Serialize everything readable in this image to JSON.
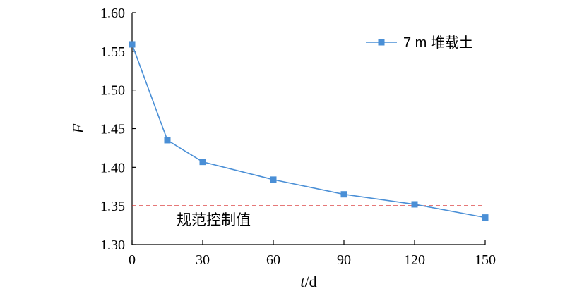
{
  "chart_data": {
    "type": "line",
    "x": [
      0,
      15,
      30,
      60,
      90,
      120,
      150
    ],
    "series": [
      {
        "name": "7 m 堆载土",
        "values": [
          1.559,
          1.435,
          1.407,
          1.384,
          1.365,
          1.352,
          1.335
        ],
        "color": "#4a8fd6",
        "marker": "square"
      }
    ],
    "xlabel_italic": "t",
    "xlabel_unit": "/d",
    "ylabel": "F",
    "xlim": [
      0,
      150
    ],
    "ylim": [
      1.3,
      1.6
    ],
    "xticks": [
      0,
      30,
      60,
      90,
      120,
      150
    ],
    "yticks": [
      1.3,
      1.35,
      1.4,
      1.45,
      1.5,
      1.55,
      1.6
    ],
    "ytick_labels": [
      "1.30",
      "1.35",
      "1.40",
      "1.45",
      "1.50",
      "1.55",
      "1.60"
    ],
    "grid": false,
    "legend_position": "top-right",
    "reference_line": {
      "value": 1.35,
      "label": "规范控制值",
      "color": "#d62728",
      "style": "dashed"
    }
  }
}
